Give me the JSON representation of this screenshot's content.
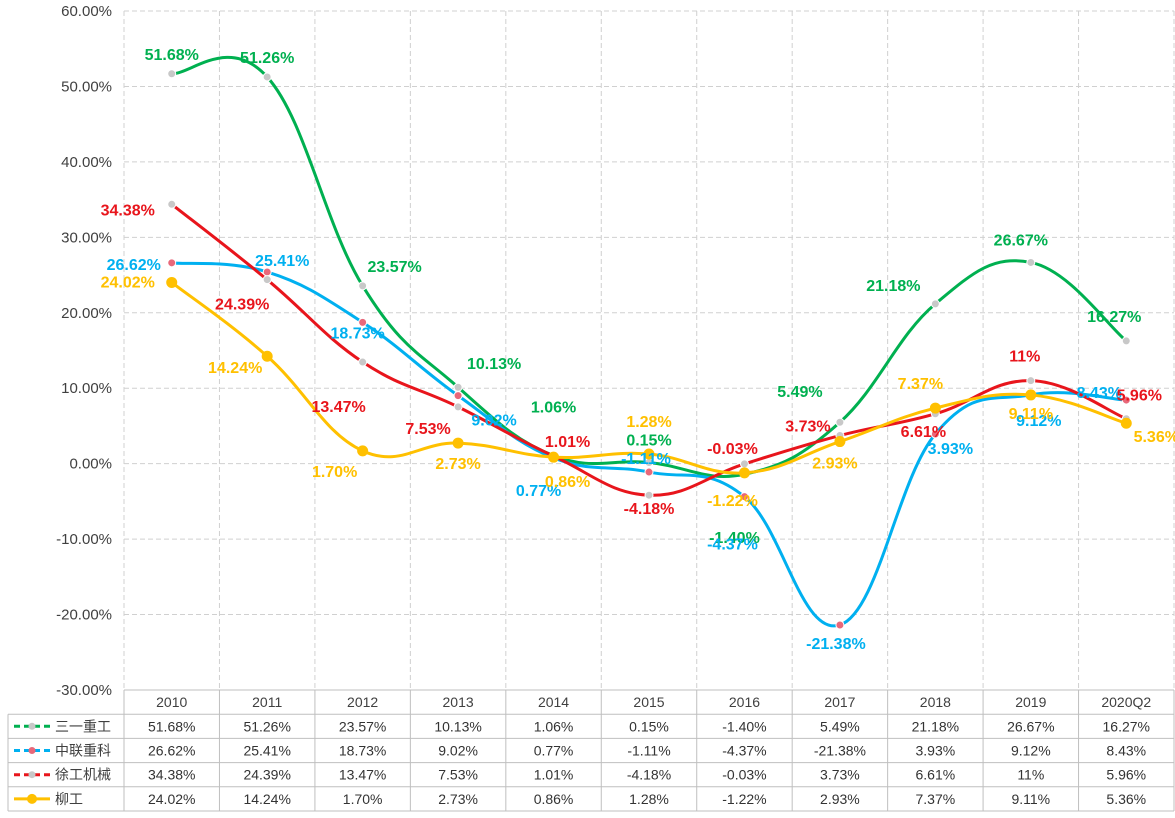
{
  "chart_data": {
    "type": "line",
    "categories": [
      "2010",
      "2011",
      "2012",
      "2013",
      "2014",
      "2015",
      "2016",
      "2017",
      "2018",
      "2019",
      "2020Q2"
    ],
    "ylim": [
      -30,
      60
    ],
    "y_ticks": [
      "60.00%",
      "50.00%",
      "40.00%",
      "30.00%",
      "20.00%",
      "10.00%",
      "0.00%",
      "-10.00%",
      "-20.00%",
      "-30.00%"
    ],
    "grid": true,
    "legend": "data-table-bottom",
    "series": [
      {
        "name": "三一重工",
        "color": "#00B050",
        "dashed": true,
        "marker_color": "#C8C8C8",
        "values": [
          51.68,
          51.26,
          23.57,
          10.13,
          1.06,
          0.15,
          -1.4,
          5.49,
          21.18,
          26.67,
          16.27
        ],
        "labels": [
          "51.68%",
          "51.26%",
          "23.57%",
          "10.13%",
          "1.06%",
          "0.15%",
          "-1.40%",
          "5.49%",
          "21.18%",
          "26.67%",
          "16.27%"
        ]
      },
      {
        "name": "中联重科",
        "color": "#00B0F0",
        "dashed": true,
        "marker_color": "#E8687A",
        "values": [
          26.62,
          25.41,
          18.73,
          9.02,
          0.77,
          -1.11,
          -4.37,
          -21.38,
          3.93,
          9.12,
          8.43
        ],
        "labels": [
          "26.62%",
          "25.41%",
          "18.73%",
          "9.02%",
          "0.77%",
          "-1.11%",
          "-4.37%",
          "-21.38%",
          "3.93%",
          "9.12%",
          "8.43%"
        ]
      },
      {
        "name": "徐工机械",
        "color": "#E8151C",
        "dashed": true,
        "marker_color": "#C8C8C8",
        "values": [
          34.38,
          24.39,
          13.47,
          7.53,
          1.01,
          -4.18,
          -0.03,
          3.73,
          6.61,
          11,
          5.96
        ],
        "labels": [
          "34.38%",
          "24.39%",
          "13.47%",
          "7.53%",
          "1.01%",
          "-4.18%",
          "-0.03%",
          "3.73%",
          "6.61%",
          "11%",
          "5.96%"
        ]
      },
      {
        "name": "柳工",
        "color": "#FFC000",
        "dashed": false,
        "marker_color": "#FFC000",
        "values": [
          24.02,
          14.24,
          1.7,
          2.73,
          0.86,
          1.28,
          -1.22,
          2.93,
          7.37,
          9.11,
          5.36
        ],
        "labels": [
          "24.02%",
          "14.24%",
          "1.70%",
          "2.73%",
          "0.86%",
          "1.28%",
          "-1.22%",
          "2.93%",
          "7.37%",
          "9.11%",
          "5.36%"
        ]
      }
    ]
  }
}
